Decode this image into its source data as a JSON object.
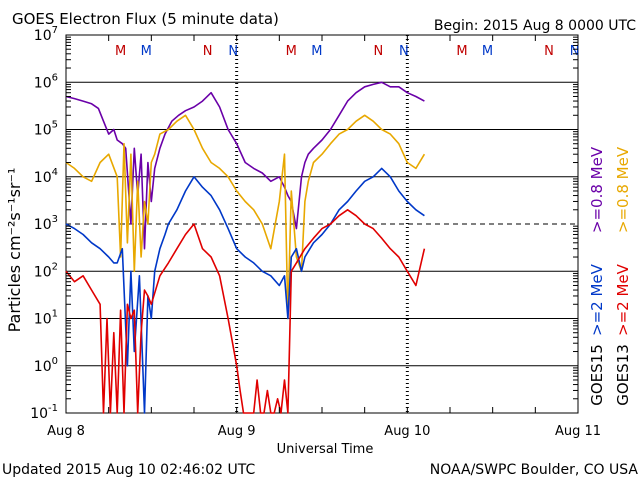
{
  "chart_data": {
    "type": "line",
    "title": "GOES Electron Flux (5 minute data)",
    "begin_label": "Begin: 2015 Aug 8 0000 UTC",
    "xlabel": "Universal Time",
    "ylabel": "Particles cm⁻²s⁻¹sr⁻¹",
    "footer_left": "Updated 2015 Aug 10 02:46:02 UTC",
    "footer_right": "NOAA/SWPC Boulder, CO USA",
    "x_unit": "days since 2015 Aug 8 00:00 UTC",
    "xlim": [
      0,
      3
    ],
    "x_ticks": [
      {
        "value": 0,
        "label": "Aug 8"
      },
      {
        "value": 1,
        "label": "Aug 9"
      },
      {
        "value": 2,
        "label": "Aug 10"
      },
      {
        "value": 3,
        "label": "Aug 11"
      }
    ],
    "y_scale": "log",
    "ylim": [
      0.1,
      10000000
    ],
    "y_ticks": [
      {
        "value": 0.1,
        "base": "10",
        "exp": "-1"
      },
      {
        "value": 1,
        "base": "10",
        "exp": "0"
      },
      {
        "value": 10,
        "base": "10",
        "exp": "1"
      },
      {
        "value": 100,
        "base": "10",
        "exp": "2"
      },
      {
        "value": 1000,
        "base": "10",
        "exp": "3"
      },
      {
        "value": 10000,
        "base": "10",
        "exp": "4"
      },
      {
        "value": 100000,
        "base": "10",
        "exp": "5"
      },
      {
        "value": 1000000,
        "base": "10",
        "exp": "6"
      },
      {
        "value": 10000000,
        "base": "10",
        "exp": "7"
      }
    ],
    "threshold": {
      "value": 1000,
      "style": "dashed"
    },
    "grid": true,
    "legend_rows": [
      {
        "label": ">=0.8 MeV",
        "color": "#e8a800",
        "slot": "right"
      },
      {
        "label": ">=0.8 MeV",
        "color": "#6a00a8",
        "slot": "left"
      },
      {
        "label": ">=2 MeV",
        "color": "#e00000",
        "slot": "right"
      },
      {
        "label": ">=2 MeV",
        "color": "#0038c8",
        "slot": "left"
      }
    ],
    "satellite_labels": [
      {
        "label": "GOES13",
        "slot": "right"
      },
      {
        "label": "GOES15",
        "slot": "left"
      }
    ],
    "markers": [
      {
        "x": 0.32,
        "label": "M",
        "color": "#c00000"
      },
      {
        "x": 0.47,
        "label": "M",
        "color": "#0038c8"
      },
      {
        "x": 0.83,
        "label": "N",
        "color": "#c00000"
      },
      {
        "x": 0.98,
        "label": "N",
        "color": "#0038c8"
      },
      {
        "x": 1.32,
        "label": "M",
        "color": "#c00000"
      },
      {
        "x": 1.47,
        "label": "M",
        "color": "#0038c8"
      },
      {
        "x": 1.83,
        "label": "N",
        "color": "#c00000"
      },
      {
        "x": 1.98,
        "label": "N",
        "color": "#0038c8"
      },
      {
        "x": 2.32,
        "label": "M",
        "color": "#c00000"
      },
      {
        "x": 2.47,
        "label": "M",
        "color": "#0038c8"
      },
      {
        "x": 2.83,
        "label": "N",
        "color": "#c00000"
      },
      {
        "x": 2.98,
        "label": "N",
        "color": "#0038c8"
      }
    ],
    "series": [
      {
        "name": "GOES15 >=0.8 MeV",
        "color": "#6a00a8",
        "x": [
          0,
          0.05,
          0.1,
          0.15,
          0.19,
          0.22,
          0.25,
          0.28,
          0.3,
          0.33,
          0.35,
          0.38,
          0.4,
          0.42,
          0.44,
          0.46,
          0.48,
          0.5,
          0.52,
          0.55,
          0.58,
          0.62,
          0.66,
          0.7,
          0.75,
          0.8,
          0.85,
          0.9,
          0.95,
          1.0,
          1.05,
          1.1,
          1.15,
          1.2,
          1.25,
          1.28,
          1.3,
          1.32,
          1.35,
          1.38,
          1.4,
          1.42,
          1.45,
          1.5,
          1.55,
          1.6,
          1.65,
          1.7,
          1.75,
          1.8,
          1.85,
          1.9,
          1.95,
          2.0,
          2.05,
          2.1
        ],
        "y": [
          500000,
          450000,
          400000,
          350000,
          280000,
          150000,
          80000,
          100000,
          60000,
          50000,
          40000,
          1000,
          40000,
          4000,
          30000,
          300,
          20000,
          3000,
          15000,
          40000,
          80000,
          150000,
          200000,
          250000,
          300000,
          400000,
          600000,
          300000,
          100000,
          50000,
          20000,
          15000,
          12000,
          8000,
          10000,
          6000,
          4000,
          3000,
          800,
          10000,
          20000,
          30000,
          40000,
          60000,
          100000,
          200000,
          400000,
          600000,
          800000,
          900000,
          1000000,
          800000,
          800000,
          600000,
          500000,
          400000
        ]
      },
      {
        "name": "GOES13 >=0.8 MeV",
        "color": "#e8a800",
        "x": [
          0,
          0.05,
          0.1,
          0.15,
          0.2,
          0.25,
          0.3,
          0.32,
          0.34,
          0.36,
          0.38,
          0.4,
          0.42,
          0.44,
          0.46,
          0.48,
          0.5,
          0.52,
          0.55,
          0.6,
          0.65,
          0.7,
          0.75,
          0.8,
          0.85,
          0.9,
          0.95,
          1.0,
          1.05,
          1.1,
          1.15,
          1.2,
          1.25,
          1.28,
          1.3,
          1.32,
          1.35,
          1.38,
          1.4,
          1.42,
          1.45,
          1.5,
          1.55,
          1.6,
          1.65,
          1.7,
          1.75,
          1.8,
          1.85,
          1.9,
          1.95,
          2.0,
          2.05,
          2.1
        ],
        "y": [
          20000,
          15000,
          10000,
          8000,
          20000,
          30000,
          10000,
          200,
          50000,
          400,
          30000,
          100,
          8000,
          200,
          3000,
          1000,
          20000,
          30000,
          80000,
          100000,
          150000,
          200000,
          100000,
          40000,
          20000,
          15000,
          10000,
          5000,
          3000,
          2000,
          1000,
          300,
          3000,
          30000,
          10,
          5000,
          200,
          100,
          3000,
          8000,
          20000,
          30000,
          50000,
          80000,
          100000,
          150000,
          200000,
          150000,
          100000,
          80000,
          50000,
          20000,
          15000,
          30000
        ]
      },
      {
        "name": "GOES15 >=2 MeV",
        "color": "#0038c8",
        "x": [
          0,
          0.05,
          0.1,
          0.15,
          0.2,
          0.25,
          0.28,
          0.3,
          0.33,
          0.36,
          0.38,
          0.4,
          0.43,
          0.46,
          0.48,
          0.5,
          0.52,
          0.55,
          0.58,
          0.6,
          0.65,
          0.7,
          0.75,
          0.8,
          0.85,
          0.9,
          0.95,
          1.0,
          1.05,
          1.1,
          1.15,
          1.2,
          1.25,
          1.28,
          1.3,
          1.32,
          1.35,
          1.38,
          1.4,
          1.45,
          1.5,
          1.55,
          1.6,
          1.65,
          1.7,
          1.75,
          1.8,
          1.85,
          1.9,
          1.95,
          2.0,
          2.05,
          2.1
        ],
        "y": [
          1000,
          800,
          600,
          400,
          300,
          200,
          150,
          150,
          300,
          1,
          100,
          2,
          80,
          0.1,
          30,
          10,
          100,
          300,
          600,
          1000,
          2000,
          5000,
          10000,
          6000,
          4000,
          2000,
          800,
          300,
          200,
          150,
          100,
          80,
          50,
          80,
          10,
          200,
          300,
          100,
          200,
          400,
          600,
          1000,
          2000,
          3000,
          5000,
          8000,
          10000,
          15000,
          10000,
          5000,
          3000,
          2000,
          1500
        ]
      },
      {
        "name": "GOES13 >=2 MeV",
        "color": "#e00000",
        "x": [
          0,
          0.05,
          0.1,
          0.15,
          0.2,
          0.22,
          0.24,
          0.26,
          0.28,
          0.3,
          0.32,
          0.34,
          0.36,
          0.38,
          0.4,
          0.42,
          0.44,
          0.46,
          0.48,
          0.5,
          0.55,
          0.6,
          0.65,
          0.7,
          0.75,
          0.8,
          0.85,
          0.9,
          0.95,
          1.0,
          1.02,
          1.04,
          1.06,
          1.08,
          1.1,
          1.12,
          1.14,
          1.16,
          1.18,
          1.2,
          1.22,
          1.24,
          1.26,
          1.28,
          1.3,
          1.32,
          1.35,
          1.4,
          1.45,
          1.5,
          1.55,
          1.6,
          1.65,
          1.7,
          1.75,
          1.8,
          1.85,
          1.9,
          1.95,
          2.0,
          2.05,
          2.1
        ],
        "y": [
          100,
          60,
          80,
          40,
          20,
          0.1,
          10,
          0.1,
          5,
          0.1,
          15,
          0.1,
          20,
          10,
          15,
          0.1,
          5,
          40,
          30,
          20,
          80,
          150,
          300,
          600,
          1000,
          300,
          200,
          80,
          10,
          1,
          0.3,
          0.1,
          0.1,
          0.1,
          0.1,
          0.5,
          0.1,
          0.1,
          0.3,
          0.1,
          0.1,
          0.2,
          0.1,
          0.5,
          0.1,
          100,
          150,
          300,
          500,
          800,
          1000,
          1500,
          2000,
          1500,
          1000,
          800,
          500,
          300,
          200,
          100,
          50,
          300
        ]
      }
    ]
  }
}
